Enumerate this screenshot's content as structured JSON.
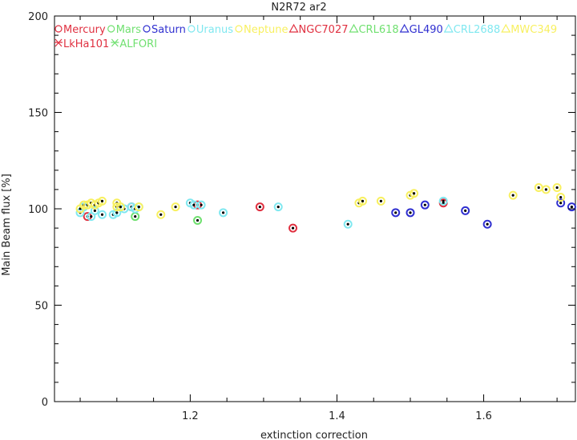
{
  "chart_data": {
    "type": "scatter",
    "title": "N2R72 ar2",
    "xlabel": "extinction correction",
    "ylabel": "Main Beam flux [%]",
    "xlim": [
      1.015,
      1.725
    ],
    "ylim": [
      0,
      200
    ],
    "xticks": [
      1.2,
      1.4,
      1.6
    ],
    "xtick_labels": [
      "1.2",
      "1.4",
      "1.6"
    ],
    "yticks": [
      0,
      50,
      100,
      150,
      200
    ],
    "ytick_labels": [
      "0",
      "50",
      "100",
      "150",
      "200"
    ],
    "grid": false,
    "legend_position": "top-left",
    "legend": [
      {
        "label": "Mercury",
        "marker": "circle",
        "color": "#e03040"
      },
      {
        "label": "Mars",
        "marker": "circle",
        "color": "#70e070"
      },
      {
        "label": "Saturn",
        "marker": "circle",
        "color": "#3030d0"
      },
      {
        "label": "Uranus",
        "marker": "circle",
        "color": "#80e8f0"
      },
      {
        "label": "Neptune",
        "marker": "circle",
        "color": "#f8f060"
      },
      {
        "label": "NGC7027",
        "marker": "triangle",
        "color": "#e03040"
      },
      {
        "label": "CRL618",
        "marker": "triangle",
        "color": "#70e070"
      },
      {
        "label": "GL490",
        "marker": "triangle",
        "color": "#3030d0"
      },
      {
        "label": "CRL2688",
        "marker": "triangle",
        "color": "#80e8f0"
      },
      {
        "label": "MWC349",
        "marker": "triangle",
        "color": "#f8f060"
      },
      {
        "label": "LkHa101",
        "marker": "star",
        "color": "#e03040"
      },
      {
        "label": "ALFORI",
        "marker": "star",
        "color": "#70e070"
      }
    ],
    "series": [
      {
        "name": "Mercury",
        "color": "#e03040",
        "points": [
          [
            1.06,
            96
          ],
          [
            1.12,
            101
          ],
          [
            1.21,
            102
          ],
          [
            1.295,
            101
          ],
          [
            1.34,
            90
          ],
          [
            1.545,
            103
          ]
        ]
      },
      {
        "name": "Mars",
        "color": "#70e070",
        "points": [
          [
            1.125,
            96
          ],
          [
            1.21,
            94
          ]
        ]
      },
      {
        "name": "Saturn",
        "color": "#3030d0",
        "points": [
          [
            1.48,
            98
          ],
          [
            1.5,
            98
          ],
          [
            1.52,
            102
          ],
          [
            1.575,
            99
          ],
          [
            1.605,
            92
          ],
          [
            1.705,
            103
          ],
          [
            1.72,
            101
          ]
        ]
      },
      {
        "name": "Uranus",
        "color": "#80e8f0",
        "points": [
          [
            1.05,
            98
          ],
          [
            1.055,
            101
          ],
          [
            1.065,
            96
          ],
          [
            1.07,
            99
          ],
          [
            1.08,
            97
          ],
          [
            1.095,
            97
          ],
          [
            1.1,
            98
          ],
          [
            1.105,
            101
          ],
          [
            1.11,
            100
          ],
          [
            1.12,
            101
          ],
          [
            1.125,
            100
          ],
          [
            1.13,
            101
          ],
          [
            1.2,
            103
          ],
          [
            1.205,
            102
          ],
          [
            1.215,
            102
          ],
          [
            1.245,
            98
          ],
          [
            1.32,
            101
          ],
          [
            1.415,
            92
          ],
          [
            1.545,
            104
          ]
        ]
      },
      {
        "name": "Neptune",
        "color": "#f8f060",
        "points": [
          [
            1.05,
            100
          ],
          [
            1.055,
            102
          ],
          [
            1.06,
            102
          ],
          [
            1.065,
            103
          ],
          [
            1.07,
            102
          ],
          [
            1.075,
            103
          ],
          [
            1.08,
            104
          ],
          [
            1.1,
            103
          ],
          [
            1.1,
            101
          ],
          [
            1.105,
            101
          ],
          [
            1.13,
            101
          ],
          [
            1.16,
            97
          ],
          [
            1.18,
            101
          ],
          [
            1.43,
            103
          ],
          [
            1.435,
            104
          ],
          [
            1.46,
            104
          ],
          [
            1.5,
            107
          ],
          [
            1.505,
            108
          ],
          [
            1.64,
            107
          ],
          [
            1.675,
            111
          ],
          [
            1.685,
            110
          ],
          [
            1.7,
            111
          ],
          [
            1.705,
            106
          ]
        ]
      }
    ]
  }
}
